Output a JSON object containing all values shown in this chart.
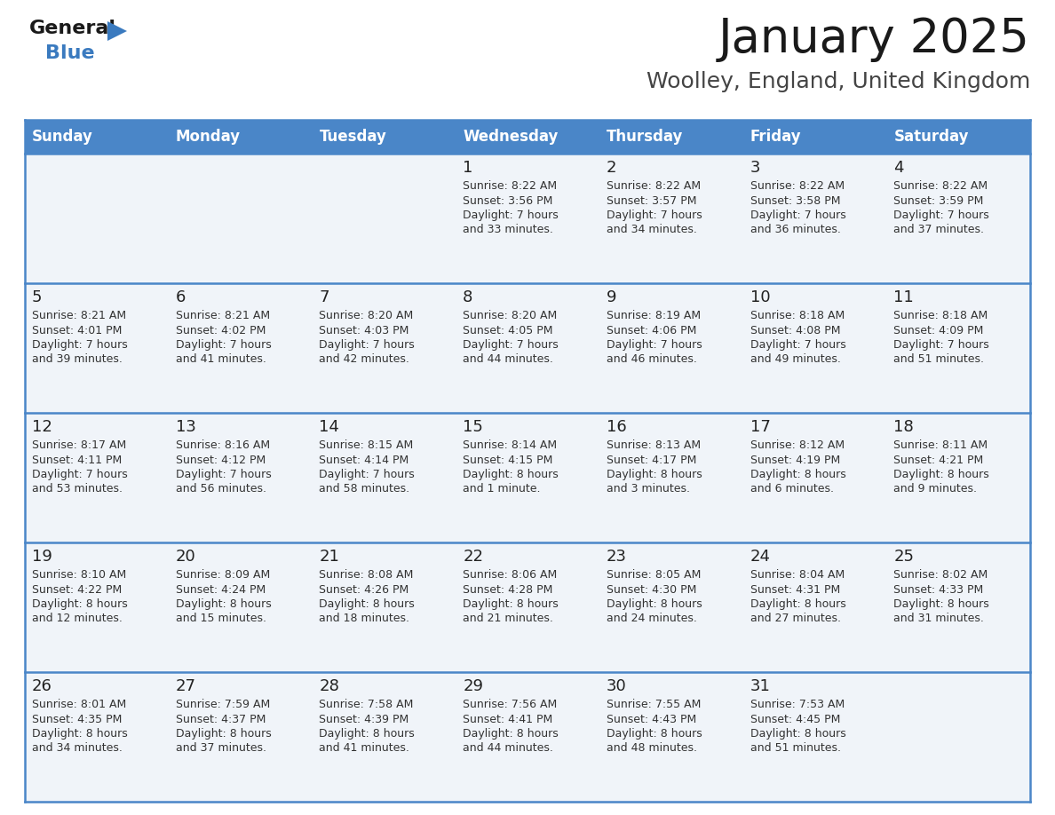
{
  "title": "January 2025",
  "subtitle": "Woolley, England, United Kingdom",
  "header_color": "#4a86c8",
  "header_text_color": "#ffffff",
  "cell_bg_color": "#f0f4f9",
  "border_color": "#4a86c8",
  "text_color": "#333333",
  "day_names": [
    "Sunday",
    "Monday",
    "Tuesday",
    "Wednesday",
    "Thursday",
    "Friday",
    "Saturday"
  ],
  "days_data": [
    {
      "day": 1,
      "col": 3,
      "row": 0,
      "sunrise": "8:22 AM",
      "sunset": "3:56 PM",
      "daylight_line1": "Daylight: 7 hours",
      "daylight_line2": "and 33 minutes."
    },
    {
      "day": 2,
      "col": 4,
      "row": 0,
      "sunrise": "8:22 AM",
      "sunset": "3:57 PM",
      "daylight_line1": "Daylight: 7 hours",
      "daylight_line2": "and 34 minutes."
    },
    {
      "day": 3,
      "col": 5,
      "row": 0,
      "sunrise": "8:22 AM",
      "sunset": "3:58 PM",
      "daylight_line1": "Daylight: 7 hours",
      "daylight_line2": "and 36 minutes."
    },
    {
      "day": 4,
      "col": 6,
      "row": 0,
      "sunrise": "8:22 AM",
      "sunset": "3:59 PM",
      "daylight_line1": "Daylight: 7 hours",
      "daylight_line2": "and 37 minutes."
    },
    {
      "day": 5,
      "col": 0,
      "row": 1,
      "sunrise": "8:21 AM",
      "sunset": "4:01 PM",
      "daylight_line1": "Daylight: 7 hours",
      "daylight_line2": "and 39 minutes."
    },
    {
      "day": 6,
      "col": 1,
      "row": 1,
      "sunrise": "8:21 AM",
      "sunset": "4:02 PM",
      "daylight_line1": "Daylight: 7 hours",
      "daylight_line2": "and 41 minutes."
    },
    {
      "day": 7,
      "col": 2,
      "row": 1,
      "sunrise": "8:20 AM",
      "sunset": "4:03 PM",
      "daylight_line1": "Daylight: 7 hours",
      "daylight_line2": "and 42 minutes."
    },
    {
      "day": 8,
      "col": 3,
      "row": 1,
      "sunrise": "8:20 AM",
      "sunset": "4:05 PM",
      "daylight_line1": "Daylight: 7 hours",
      "daylight_line2": "and 44 minutes."
    },
    {
      "day": 9,
      "col": 4,
      "row": 1,
      "sunrise": "8:19 AM",
      "sunset": "4:06 PM",
      "daylight_line1": "Daylight: 7 hours",
      "daylight_line2": "and 46 minutes."
    },
    {
      "day": 10,
      "col": 5,
      "row": 1,
      "sunrise": "8:18 AM",
      "sunset": "4:08 PM",
      "daylight_line1": "Daylight: 7 hours",
      "daylight_line2": "and 49 minutes."
    },
    {
      "day": 11,
      "col": 6,
      "row": 1,
      "sunrise": "8:18 AM",
      "sunset": "4:09 PM",
      "daylight_line1": "Daylight: 7 hours",
      "daylight_line2": "and 51 minutes."
    },
    {
      "day": 12,
      "col": 0,
      "row": 2,
      "sunrise": "8:17 AM",
      "sunset": "4:11 PM",
      "daylight_line1": "Daylight: 7 hours",
      "daylight_line2": "and 53 minutes."
    },
    {
      "day": 13,
      "col": 1,
      "row": 2,
      "sunrise": "8:16 AM",
      "sunset": "4:12 PM",
      "daylight_line1": "Daylight: 7 hours",
      "daylight_line2": "and 56 minutes."
    },
    {
      "day": 14,
      "col": 2,
      "row": 2,
      "sunrise": "8:15 AM",
      "sunset": "4:14 PM",
      "daylight_line1": "Daylight: 7 hours",
      "daylight_line2": "and 58 minutes."
    },
    {
      "day": 15,
      "col": 3,
      "row": 2,
      "sunrise": "8:14 AM",
      "sunset": "4:15 PM",
      "daylight_line1": "Daylight: 8 hours",
      "daylight_line2": "and 1 minute."
    },
    {
      "day": 16,
      "col": 4,
      "row": 2,
      "sunrise": "8:13 AM",
      "sunset": "4:17 PM",
      "daylight_line1": "Daylight: 8 hours",
      "daylight_line2": "and 3 minutes."
    },
    {
      "day": 17,
      "col": 5,
      "row": 2,
      "sunrise": "8:12 AM",
      "sunset": "4:19 PM",
      "daylight_line1": "Daylight: 8 hours",
      "daylight_line2": "and 6 minutes."
    },
    {
      "day": 18,
      "col": 6,
      "row": 2,
      "sunrise": "8:11 AM",
      "sunset": "4:21 PM",
      "daylight_line1": "Daylight: 8 hours",
      "daylight_line2": "and 9 minutes."
    },
    {
      "day": 19,
      "col": 0,
      "row": 3,
      "sunrise": "8:10 AM",
      "sunset": "4:22 PM",
      "daylight_line1": "Daylight: 8 hours",
      "daylight_line2": "and 12 minutes."
    },
    {
      "day": 20,
      "col": 1,
      "row": 3,
      "sunrise": "8:09 AM",
      "sunset": "4:24 PM",
      "daylight_line1": "Daylight: 8 hours",
      "daylight_line2": "and 15 minutes."
    },
    {
      "day": 21,
      "col": 2,
      "row": 3,
      "sunrise": "8:08 AM",
      "sunset": "4:26 PM",
      "daylight_line1": "Daylight: 8 hours",
      "daylight_line2": "and 18 minutes."
    },
    {
      "day": 22,
      "col": 3,
      "row": 3,
      "sunrise": "8:06 AM",
      "sunset": "4:28 PM",
      "daylight_line1": "Daylight: 8 hours",
      "daylight_line2": "and 21 minutes."
    },
    {
      "day": 23,
      "col": 4,
      "row": 3,
      "sunrise": "8:05 AM",
      "sunset": "4:30 PM",
      "daylight_line1": "Daylight: 8 hours",
      "daylight_line2": "and 24 minutes."
    },
    {
      "day": 24,
      "col": 5,
      "row": 3,
      "sunrise": "8:04 AM",
      "sunset": "4:31 PM",
      "daylight_line1": "Daylight: 8 hours",
      "daylight_line2": "and 27 minutes."
    },
    {
      "day": 25,
      "col": 6,
      "row": 3,
      "sunrise": "8:02 AM",
      "sunset": "4:33 PM",
      "daylight_line1": "Daylight: 8 hours",
      "daylight_line2": "and 31 minutes."
    },
    {
      "day": 26,
      "col": 0,
      "row": 4,
      "sunrise": "8:01 AM",
      "sunset": "4:35 PM",
      "daylight_line1": "Daylight: 8 hours",
      "daylight_line2": "and 34 minutes."
    },
    {
      "day": 27,
      "col": 1,
      "row": 4,
      "sunrise": "7:59 AM",
      "sunset": "4:37 PM",
      "daylight_line1": "Daylight: 8 hours",
      "daylight_line2": "and 37 minutes."
    },
    {
      "day": 28,
      "col": 2,
      "row": 4,
      "sunrise": "7:58 AM",
      "sunset": "4:39 PM",
      "daylight_line1": "Daylight: 8 hours",
      "daylight_line2": "and 41 minutes."
    },
    {
      "day": 29,
      "col": 3,
      "row": 4,
      "sunrise": "7:56 AM",
      "sunset": "4:41 PM",
      "daylight_line1": "Daylight: 8 hours",
      "daylight_line2": "and 44 minutes."
    },
    {
      "day": 30,
      "col": 4,
      "row": 4,
      "sunrise": "7:55 AM",
      "sunset": "4:43 PM",
      "daylight_line1": "Daylight: 8 hours",
      "daylight_line2": "and 48 minutes."
    },
    {
      "day": 31,
      "col": 5,
      "row": 4,
      "sunrise": "7:53 AM",
      "sunset": "4:45 PM",
      "daylight_line1": "Daylight: 8 hours",
      "daylight_line2": "and 51 minutes."
    }
  ],
  "logo_general_color": "#1a1a1a",
  "logo_blue_color": "#3a7abf",
  "logo_triangle_color": "#3a7abf",
  "title_color": "#1a1a1a",
  "subtitle_color": "#444444"
}
